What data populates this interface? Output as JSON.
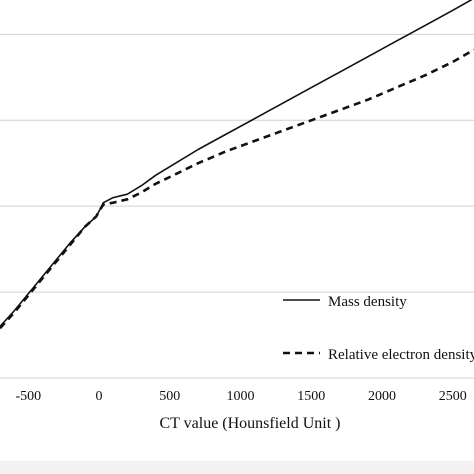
{
  "chart_data": {
    "type": "line",
    "title": "",
    "xlabel": "CT value (Hounsfield Unit )",
    "ylabel": "",
    "xlim": [
      -700,
      2650
    ],
    "ylim": [
      0,
      2.2
    ],
    "x_ticks": [
      -500,
      0,
      500,
      1000,
      1500,
      2000,
      2500
    ],
    "y_gridlines": [
      0.5,
      1.0,
      1.5,
      2.0
    ],
    "grid": "horizontal",
    "legend_position": "lower-right",
    "series": [
      {
        "name": "Mass density",
        "style": "solid",
        "color": "#111111",
        "x": [
          -700,
          -600,
          -500,
          -400,
          -300,
          -200,
          -100,
          -20,
          0,
          30,
          100,
          200,
          300,
          400,
          500,
          700,
          900,
          1100,
          1300,
          1500,
          1700,
          1900,
          2100,
          2300,
          2500,
          2650
        ],
        "y": [
          0.3,
          0.39,
          0.49,
          0.59,
          0.69,
          0.79,
          0.88,
          0.94,
          0.97,
          1.02,
          1.05,
          1.07,
          1.12,
          1.18,
          1.23,
          1.33,
          1.42,
          1.51,
          1.6,
          1.69,
          1.78,
          1.87,
          1.96,
          2.05,
          2.14,
          2.21
        ]
      },
      {
        "name": "Relative electron density",
        "style": "dashed",
        "color": "#111111",
        "x": [
          -700,
          -600,
          -500,
          -400,
          -300,
          -200,
          -100,
          -20,
          0,
          30,
          100,
          200,
          300,
          400,
          500,
          700,
          900,
          1100,
          1300,
          1500,
          1700,
          1900,
          2100,
          2300,
          2500,
          2650
        ],
        "y": [
          0.29,
          0.38,
          0.48,
          0.58,
          0.68,
          0.78,
          0.88,
          0.94,
          0.97,
          1.01,
          1.02,
          1.04,
          1.08,
          1.13,
          1.17,
          1.25,
          1.32,
          1.38,
          1.44,
          1.5,
          1.56,
          1.62,
          1.69,
          1.76,
          1.84,
          1.91
        ]
      }
    ]
  }
}
